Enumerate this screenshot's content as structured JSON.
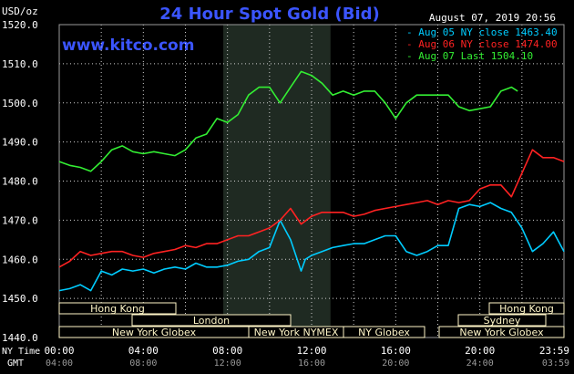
{
  "chart_data": {
    "type": "line",
    "title": "24 Hour Spot Gold (Bid)",
    "ylabel": "USD/oz",
    "watermark": "www.kitco.com",
    "timestamp": "August 07, 2019 20:56",
    "ylim": [
      1440,
      1520
    ],
    "yticks": [
      "1520.0",
      "1510.0",
      "1500.0",
      "1490.0",
      "1480.0",
      "1470.0",
      "1460.0",
      "1450.0",
      "1440.0"
    ],
    "x_hours_range": [
      0,
      24
    ],
    "xticks_ny": [
      "00:00",
      "04:00",
      "08:00",
      "12:00",
      "16:00",
      "20:00",
      "23:59"
    ],
    "xticks_gmt": [
      "04:00",
      "08:00",
      "12:00",
      "16:00",
      "20:00",
      "24:00",
      "03:59"
    ],
    "xaxis_row_labels": {
      "ny": "NY Time",
      "gmt": "GMT"
    },
    "grid": true,
    "legend_position": "top-right",
    "highlight_hours": [
      7.8,
      12.9
    ],
    "colors": {
      "background": "#000000",
      "plot_bg": "#000000",
      "highlight": "#1f2a22",
      "grid": "#cfcfcf",
      "axis_text": "#ffffff",
      "title": "#3b55ff",
      "watermark": "#3b55ff",
      "session_bar": "#fff6c8"
    },
    "series": [
      {
        "name": "Aug 05 NY close 1463.40",
        "color": "#00ccff",
        "x": [
          0,
          0.5,
          1,
          1.5,
          2,
          2.5,
          3,
          3.5,
          4,
          4.5,
          5,
          5.5,
          6,
          6.5,
          7,
          7.5,
          8,
          8.5,
          9,
          9.5,
          10,
          10.5,
          11,
          11.5,
          11.7,
          12,
          12.5,
          13,
          13.5,
          14,
          14.5,
          15,
          15.5,
          16,
          16.5,
          17,
          17.5,
          18,
          18.5,
          19,
          19.5,
          20,
          20.5,
          21,
          21.5,
          22,
          22.5,
          23,
          23.5,
          24
        ],
        "y": [
          1452,
          1452.5,
          1453.5,
          1452,
          1457,
          1456,
          1457.5,
          1457,
          1457.5,
          1456.5,
          1457.5,
          1458,
          1457.5,
          1459,
          1458,
          1458,
          1458.5,
          1459.5,
          1460,
          1462,
          1463,
          1470,
          1465,
          1457,
          1460,
          1461,
          1462,
          1463,
          1463.5,
          1464,
          1464,
          1465,
          1466,
          1466,
          1462,
          1461,
          1462,
          1463.5,
          1463.5,
          1473,
          1474,
          1473.5,
          1474.5,
          1473,
          1472,
          1468,
          1462,
          1464,
          1467,
          1462
        ]
      },
      {
        "name": "Aug 06 NY close 1474.00",
        "color": "#ff2222",
        "x": [
          0,
          0.5,
          1,
          1.5,
          2,
          2.5,
          3,
          3.5,
          4,
          4.5,
          5,
          5.5,
          6,
          6.5,
          7,
          7.5,
          8,
          8.5,
          9,
          9.5,
          10,
          10.5,
          11,
          11.5,
          12,
          12.5,
          13,
          13.5,
          14,
          14.5,
          15,
          15.5,
          16,
          16.5,
          17,
          17.5,
          18,
          18.5,
          19,
          19.5,
          20,
          20.5,
          21,
          21.5,
          22,
          22.5,
          23,
          23.5,
          24
        ],
        "y": [
          1458,
          1459.5,
          1462,
          1461,
          1461.5,
          1462,
          1462,
          1461,
          1460.5,
          1461.5,
          1462,
          1462.5,
          1463.5,
          1463,
          1464,
          1464,
          1465,
          1466,
          1466,
          1467,
          1468,
          1470,
          1473,
          1469,
          1471,
          1472,
          1472,
          1472,
          1471,
          1471.5,
          1472.5,
          1473,
          1473.5,
          1474,
          1474.5,
          1475,
          1474,
          1475,
          1474.5,
          1475,
          1478,
          1479,
          1479,
          1476,
          1482,
          1488,
          1486,
          1486,
          1485
        ]
      },
      {
        "name": "Aug 07 Last 1504.10",
        "color": "#33ee33",
        "x": [
          0,
          0.5,
          1,
          1.5,
          2,
          2.5,
          3,
          3.5,
          4,
          4.5,
          5,
          5.5,
          6,
          6.5,
          7,
          7.5,
          8,
          8.5,
          9,
          9.5,
          10,
          10.5,
          11,
          11.5,
          12,
          12.5,
          13,
          13.5,
          14,
          14.5,
          15,
          15.5,
          16,
          16.5,
          17,
          17.5,
          18,
          18.5,
          19,
          19.5,
          20,
          20.5,
          21,
          21.5,
          21.8
        ],
        "y": [
          1485,
          1484,
          1483.5,
          1482.5,
          1485,
          1488,
          1489,
          1487.5,
          1487,
          1487.5,
          1487,
          1486.5,
          1488,
          1491,
          1492,
          1496,
          1495,
          1497,
          1502,
          1504,
          1504,
          1500,
          1504,
          1508,
          1507,
          1505,
          1502,
          1503,
          1502,
          1503,
          1503,
          1500,
          1496,
          1500,
          1502,
          1502,
          1502,
          1502,
          1499,
          1498,
          1498.5,
          1499,
          1503,
          1504,
          1503
        ]
      }
    ],
    "sessions": [
      {
        "label": "Hong Kong",
        "row": 0,
        "start": 0,
        "end": 9.1
      },
      {
        "label": "London",
        "row": 1,
        "start": 5.9,
        "end": 18.5
      },
      {
        "label": "New York Globex",
        "row": 2,
        "start": 0,
        "end": 15.5
      },
      {
        "label": "New York NYMEX",
        "row": 2,
        "start": 15.5,
        "end": 13.4
      },
      {
        "label": "NY Globex",
        "row": 2,
        "start": 13.4,
        "end": 19.0
      },
      {
        "label": "Hong Kong",
        "row": 0,
        "start": 20.5,
        "end": 24
      },
      {
        "label": "Sydney",
        "row": 1,
        "start": 21.8,
        "end": 24
      },
      {
        "label": "New York Globex",
        "row": 2,
        "start": 20.0,
        "end": 24
      }
    ]
  }
}
